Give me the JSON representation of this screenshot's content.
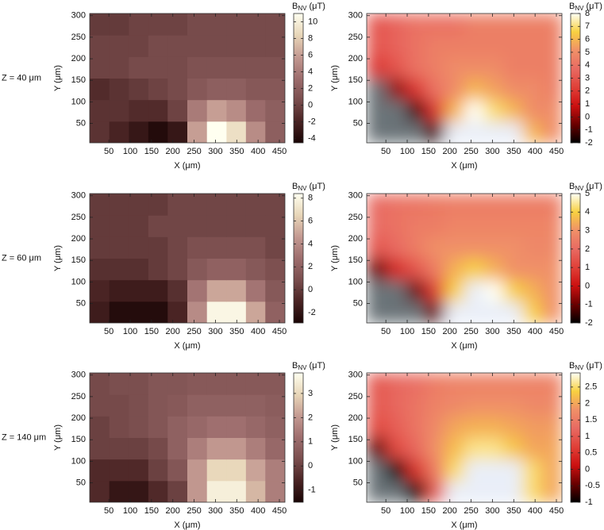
{
  "chart_data": [
    {
      "type": "heatmap",
      "row_label": "Z = 40 μm",
      "xlabel": "X (μm)",
      "ylabel": "Y (μm)",
      "colorbar_label": [
        "B",
        "NV",
        "(μT)"
      ],
      "interpolation": "nearest",
      "colormap": [
        "#1a0505",
        "#4a2424",
        "#7a4e4e",
        "#9e6e6e",
        "#c49a92",
        "#e8d6b8",
        "#fffff0"
      ],
      "xlim": [
        5,
        463
      ],
      "ylim": [
        5,
        305
      ],
      "xticks": [
        50,
        100,
        150,
        200,
        250,
        300,
        350,
        400,
        450
      ],
      "yticks": [
        50,
        100,
        150,
        200,
        250,
        300
      ],
      "clim": [
        -4.5,
        11
      ],
      "cticks": [
        -4,
        -2,
        0,
        2,
        4,
        6,
        8,
        10
      ],
      "x": [
        28,
        74,
        120,
        165,
        211,
        257,
        303,
        349,
        394,
        440
      ],
      "y": [
        30,
        80,
        130,
        180,
        230,
        280
      ],
      "z": [
        [
          -1,
          -2,
          -3,
          -4,
          -3,
          6,
          11,
          9,
          5,
          2
        ],
        [
          -1,
          -1,
          -1.5,
          -1.5,
          0,
          4,
          6,
          5,
          3,
          2
        ],
        [
          -1.5,
          -1,
          -0.5,
          0,
          0.5,
          1.5,
          2,
          2,
          1.5,
          1.5
        ],
        [
          0,
          0,
          0.5,
          0.5,
          0.5,
          1,
          1,
          1,
          1,
          1
        ],
        [
          0,
          0,
          0,
          0.5,
          0.5,
          0.5,
          0.5,
          0.5,
          0.5,
          0.5
        ],
        [
          -0.5,
          -0.5,
          0,
          0,
          0,
          0.5,
          0.5,
          0.5,
          0.5,
          0.5
        ]
      ]
    },
    {
      "type": "heatmap",
      "xlabel": "X (μm)",
      "ylabel": "Y (μm)",
      "colorbar_label": [
        "B",
        "NV",
        "(μT)"
      ],
      "interpolation": "smooth",
      "colormap": [
        "#000000",
        "#6a0000",
        "#cc1010",
        "#e04038",
        "#e86a62",
        "#f09068",
        "#f8d040",
        "#fffff4"
      ],
      "under_color": "#6b7378",
      "over_color": "#e9eef8",
      "xlim": [
        5,
        463
      ],
      "ylim": [
        5,
        305
      ],
      "xticks": [
        50,
        100,
        150,
        200,
        250,
        300,
        350,
        400,
        450
      ],
      "yticks": [
        50,
        100,
        150,
        200,
        250,
        300
      ],
      "clim": [
        -2,
        8
      ],
      "cticks": [
        -2,
        -1,
        0,
        1,
        2,
        3,
        4,
        5,
        6,
        7,
        8
      ],
      "x": [
        28,
        74,
        120,
        165,
        211,
        257,
        303,
        349,
        394,
        440
      ],
      "y": [
        30,
        80,
        130,
        180,
        230,
        280
      ],
      "z": [
        [
          -3,
          -3,
          -3,
          -1,
          9,
          9,
          9,
          9,
          6,
          5
        ],
        [
          -3,
          -3,
          -1,
          2,
          6,
          8,
          7,
          6,
          5,
          5
        ],
        [
          -3,
          0,
          2,
          4,
          5,
          6,
          5.5,
          5,
          5,
          4.5
        ],
        [
          2,
          3,
          4,
          4.5,
          5,
          5,
          5,
          4.5,
          4.5,
          4.5
        ],
        [
          3,
          3.5,
          4,
          4.5,
          4.5,
          4.5,
          4.5,
          4.5,
          4.5,
          4.5
        ],
        [
          3,
          3.5,
          4,
          4,
          4,
          4.5,
          4.5,
          4.5,
          4.5,
          4.5
        ]
      ]
    },
    {
      "type": "heatmap",
      "row_label": "Z = 60 μm",
      "xlabel": "X (μm)",
      "ylabel": "Y (μm)",
      "colorbar_label": [
        "B",
        "NV",
        "(μT)"
      ],
      "interpolation": "nearest",
      "colormap": [
        "#1a0505",
        "#4a2424",
        "#7a4e4e",
        "#9e6e6e",
        "#c49a92",
        "#e8d6b8",
        "#fffff0"
      ],
      "xlim": [
        5,
        463
      ],
      "ylim": [
        5,
        305
      ],
      "xticks": [
        50,
        100,
        150,
        200,
        250,
        300,
        350,
        400,
        450
      ],
      "yticks": [
        50,
        100,
        150,
        200,
        250,
        300
      ],
      "clim": [
        -2.9,
        8.4
      ],
      "cticks": [
        -2,
        0,
        2,
        4,
        6,
        8
      ],
      "x": [
        28,
        74,
        120,
        165,
        211,
        257,
        303,
        349,
        394,
        440
      ],
      "y": [
        30,
        80,
        130,
        180,
        230,
        280
      ],
      "z": [
        [
          -1.5,
          -2.5,
          -2.5,
          -2.5,
          -1,
          4,
          8,
          8,
          5,
          2
        ],
        [
          -1,
          -1.5,
          -1.5,
          -1.5,
          -0.5,
          3,
          5,
          5,
          3,
          1.5
        ],
        [
          -0.5,
          -0.5,
          -0.5,
          0,
          0.5,
          1.5,
          2,
          2,
          1.5,
          1
        ],
        [
          0,
          0,
          0,
          0,
          0.5,
          1,
          1,
          1,
          1,
          0.5
        ],
        [
          0,
          0,
          0,
          0.5,
          0.5,
          0.5,
          0.5,
          0.5,
          0.5,
          0.5
        ],
        [
          0,
          0,
          0,
          0,
          0.5,
          0.5,
          0.5,
          0.5,
          0.5,
          0.5
        ]
      ]
    },
    {
      "type": "heatmap",
      "xlabel": "X (μm)",
      "ylabel": "Y (μm)",
      "colorbar_label": [
        "B",
        "NV",
        "(μT)"
      ],
      "interpolation": "smooth",
      "colormap": [
        "#000000",
        "#6a0000",
        "#cc1010",
        "#e04038",
        "#e86a62",
        "#f09068",
        "#f8d040",
        "#fffff4"
      ],
      "under_color": "#6b7378",
      "over_color": "#e9eef8",
      "xlim": [
        5,
        463
      ],
      "ylim": [
        5,
        305
      ],
      "xticks": [
        50,
        100,
        150,
        200,
        250,
        300,
        350,
        400,
        450
      ],
      "yticks": [
        50,
        100,
        150,
        200,
        250,
        300
      ],
      "clim": [
        -2,
        5
      ],
      "cticks": [
        -2,
        -1,
        0,
        1,
        2,
        3,
        4,
        5
      ],
      "x": [
        28,
        74,
        120,
        165,
        211,
        257,
        303,
        349,
        394,
        440
      ],
      "y": [
        30,
        80,
        130,
        180,
        230,
        280
      ],
      "z": [
        [
          -3,
          -3,
          -3,
          -1,
          6,
          6,
          6,
          6,
          4,
          3
        ],
        [
          -3,
          -3,
          -1,
          1,
          4,
          5.5,
          5,
          4,
          3.5,
          3
        ],
        [
          -1,
          0.5,
          1.5,
          2.5,
          3.5,
          4,
          3.5,
          3,
          3,
          3
        ],
        [
          1.5,
          2,
          2.5,
          3,
          3,
          3,
          3,
          3,
          2.8,
          2.8
        ],
        [
          2,
          2.2,
          2.5,
          2.5,
          2.7,
          2.7,
          2.7,
          2.7,
          2.7,
          2.7
        ],
        [
          2,
          2.2,
          2.3,
          2.4,
          2.5,
          2.5,
          2.5,
          2.5,
          2.5,
          2.5
        ]
      ]
    },
    {
      "type": "heatmap",
      "row_label": "Z = 140 μm",
      "xlabel": "X (μm)",
      "ylabel": "Y (μm)",
      "colorbar_label": [
        "B",
        "NV",
        "(μT)"
      ],
      "interpolation": "nearest",
      "colormap": [
        "#1a0505",
        "#4a2424",
        "#7a4e4e",
        "#9e6e6e",
        "#c49a92",
        "#e8d6b8",
        "#fffff0"
      ],
      "xlim": [
        5,
        463
      ],
      "ylim": [
        5,
        305
      ],
      "xticks": [
        50,
        100,
        150,
        200,
        250,
        300,
        350,
        400,
        450
      ],
      "yticks": [
        50,
        100,
        150,
        200,
        250,
        300
      ],
      "clim": [
        -1.5,
        3.85
      ],
      "cticks": [
        -1,
        0,
        1,
        2,
        3
      ],
      "x": [
        28,
        74,
        120,
        165,
        211,
        257,
        303,
        349,
        394,
        440
      ],
      "y": [
        30,
        80,
        130,
        180,
        230,
        280
      ],
      "z": [
        [
          -0.5,
          -1,
          -1,
          -0.5,
          0,
          2,
          3.5,
          3.5,
          2.5,
          1.5
        ],
        [
          -0.5,
          -0.5,
          -0.5,
          0,
          0.5,
          2,
          3,
          3,
          2.2,
          1.5
        ],
        [
          0,
          0,
          0,
          0.2,
          0.8,
          1.5,
          2,
          2,
          1.5,
          1
        ],
        [
          0,
          0.2,
          0.3,
          0.5,
          0.8,
          1,
          1.2,
          1.2,
          1,
          0.8
        ],
        [
          0.2,
          0.2,
          0.3,
          0.5,
          0.6,
          0.8,
          0.8,
          0.8,
          0.8,
          0.7
        ],
        [
          0.2,
          0.3,
          0.3,
          0.5,
          0.5,
          0.6,
          0.6,
          0.6,
          0.6,
          0.6
        ]
      ]
    },
    {
      "type": "heatmap",
      "xlabel": "X (μm)",
      "ylabel": "Y (μm)",
      "colorbar_label": [
        "B",
        "NV",
        "(μT)"
      ],
      "interpolation": "smooth",
      "colormap": [
        "#000000",
        "#6a0000",
        "#cc1010",
        "#e04038",
        "#e86a62",
        "#f09068",
        "#f8d040",
        "#fffff4"
      ],
      "under_color": "#6b7378",
      "over_color": "#e9eef8",
      "xlim": [
        5,
        463
      ],
      "ylim": [
        5,
        305
      ],
      "xticks": [
        50,
        100,
        150,
        200,
        250,
        300,
        350,
        400,
        450
      ],
      "yticks": [
        50,
        100,
        150,
        200,
        250,
        300
      ],
      "clim": [
        -1,
        2.93
      ],
      "cticks": [
        -1,
        -0.5,
        0,
        0.5,
        1,
        1.5,
        2,
        2.5
      ],
      "x": [
        28,
        74,
        120,
        165,
        211,
        257,
        303,
        349,
        394,
        440
      ],
      "y": [
        30,
        80,
        130,
        180,
        230,
        280
      ],
      "z": [
        [
          -1.5,
          -1.5,
          -1,
          1,
          3.5,
          3.5,
          3.5,
          3.5,
          2.5,
          2
        ],
        [
          -1.5,
          -1,
          0.5,
          1.5,
          2.5,
          3.5,
          3.5,
          3,
          2.5,
          2
        ],
        [
          -0.5,
          0.8,
          1.2,
          1.8,
          2.2,
          2.6,
          2.6,
          2.3,
          2,
          2
        ],
        [
          0.8,
          1.1,
          1.4,
          1.7,
          2,
          2.1,
          2.1,
          2,
          1.9,
          1.9
        ],
        [
          1,
          1.2,
          1.4,
          1.6,
          1.7,
          1.8,
          1.8,
          1.8,
          1.7,
          1.7
        ],
        [
          1,
          1.2,
          1.3,
          1.5,
          1.6,
          1.6,
          1.6,
          1.6,
          1.6,
          1.6
        ]
      ]
    }
  ]
}
